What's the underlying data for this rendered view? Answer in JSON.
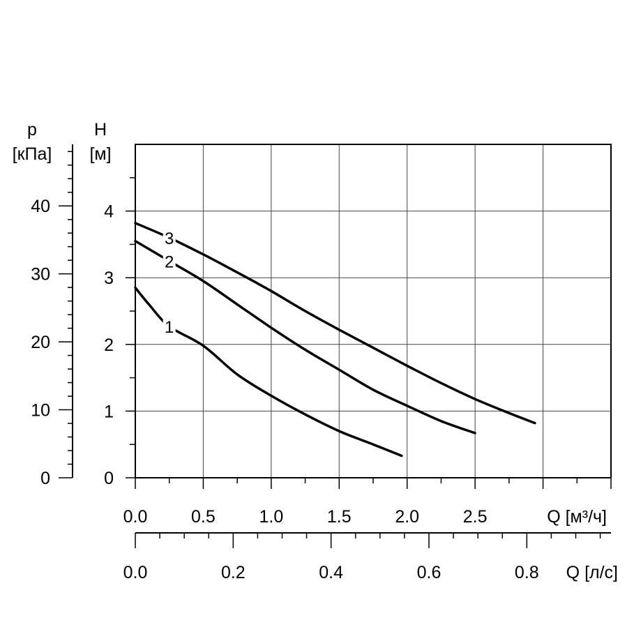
{
  "chart_data": {
    "type": "line",
    "title": "",
    "x_primary": {
      "label": "Q [м³/ч]",
      "range": [
        0,
        3.5
      ],
      "ticks": [
        "0.0",
        "0.5",
        "1.0",
        "1.5",
        "2.0",
        "2.5"
      ],
      "tick_values": [
        0,
        0.5,
        1.0,
        1.5,
        2.0,
        2.5
      ]
    },
    "x_secondary": {
      "label": "Q [л/с]",
      "range": [
        0,
        0.972
      ],
      "ticks": [
        "0.0",
        "0.2",
        "0.4",
        "0.6",
        "0.8"
      ],
      "tick_values": [
        0,
        0.2,
        0.4,
        0.6,
        0.8
      ]
    },
    "y_primary": {
      "label_line1": "H",
      "label_line2": "[м]",
      "range": [
        0,
        5
      ],
      "ticks": [
        "0",
        "1",
        "2",
        "3",
        "4"
      ],
      "tick_values": [
        0,
        1,
        2,
        3,
        4
      ]
    },
    "y_secondary": {
      "label_line1": "p",
      "label_line2": "[кПа]",
      "range": [
        0,
        49.05
      ],
      "ticks": [
        "0",
        "10",
        "20",
        "30",
        "40"
      ],
      "tick_values": [
        0,
        10,
        20,
        30,
        40
      ]
    },
    "grid": true,
    "series": [
      {
        "name": "1",
        "x": [
          0,
          0.1,
          0.25,
          0.5,
          0.75,
          1.0,
          1.25,
          1.5,
          1.75,
          1.96
        ],
        "y": [
          2.85,
          2.6,
          2.27,
          1.98,
          1.55,
          1.23,
          0.95,
          0.7,
          0.5,
          0.33
        ]
      },
      {
        "name": "2",
        "x": [
          0,
          0.25,
          0.5,
          0.75,
          1.0,
          1.25,
          1.5,
          1.75,
          2.0,
          2.25,
          2.5
        ],
        "y": [
          3.55,
          3.25,
          2.95,
          2.6,
          2.25,
          1.92,
          1.62,
          1.32,
          1.08,
          0.85,
          0.67
        ]
      },
      {
        "name": "3",
        "x": [
          0,
          0.25,
          0.5,
          0.75,
          1.0,
          1.25,
          1.5,
          1.75,
          2.0,
          2.25,
          2.5,
          2.75,
          2.94
        ],
        "y": [
          3.82,
          3.6,
          3.35,
          3.08,
          2.8,
          2.5,
          2.22,
          1.95,
          1.68,
          1.42,
          1.18,
          0.97,
          0.82
        ]
      }
    ]
  }
}
